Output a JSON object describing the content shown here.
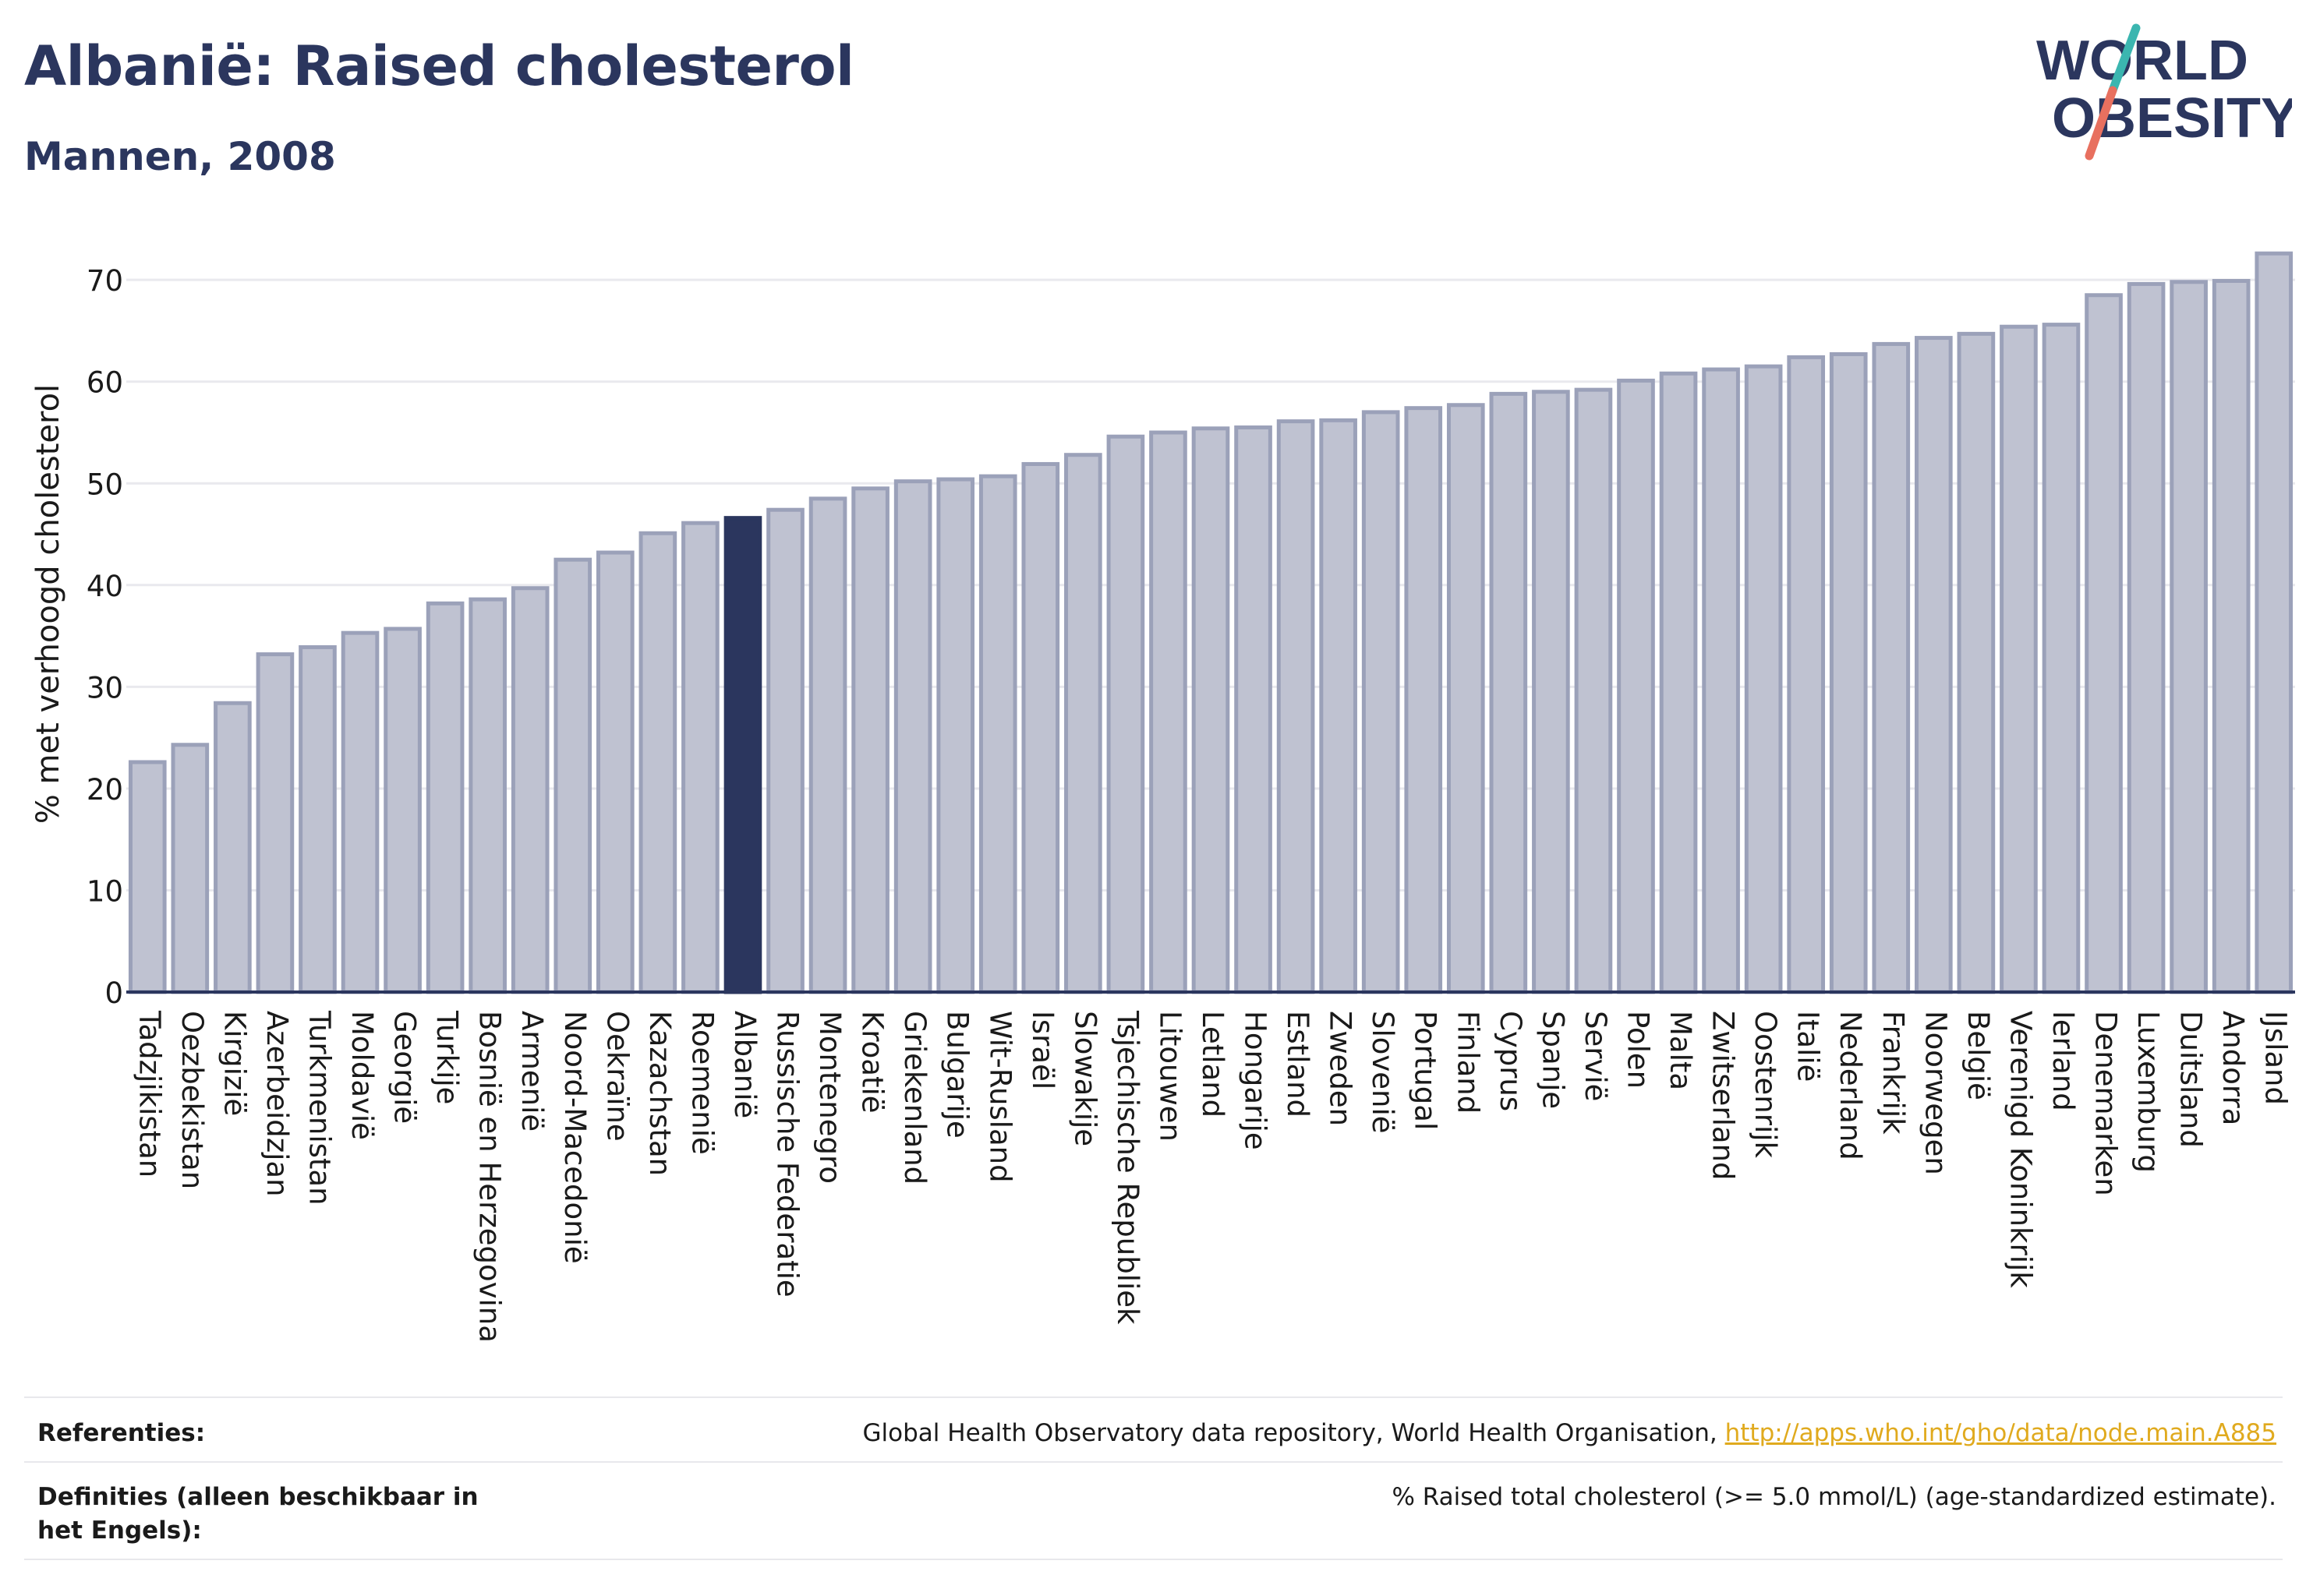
{
  "header": {
    "title": "Albanië: Raised cholesterol",
    "subtitle": "Mannen, 2008"
  },
  "logo": {
    "line1": "WORLD",
    "line2": "OBESITY"
  },
  "colors": {
    "bar": "#bfc2d1",
    "bar_stroke": "#9ba1b9",
    "highlight": "#2b365e",
    "grid": "#e9e9ee",
    "text": "#2b365e",
    "link": "#e0aa1e"
  },
  "chart_data": {
    "type": "bar",
    "ylabel": "% met verhoogd cholesterol",
    "ylim": [
      0,
      73
    ],
    "yticks": [
      0,
      10,
      20,
      30,
      40,
      50,
      60,
      70
    ],
    "highlight": "Albanië",
    "categories": [
      "Tadzjikistan",
      "Oezbekistan",
      "Kirgizië",
      "Azerbeidzjan",
      "Turkmenistan",
      "Moldavië",
      "Georgië",
      "Turkije",
      "Bosnië en Herzegovina",
      "Armenië",
      "Noord-Macedonië",
      "Oekraïne",
      "Kazachstan",
      "Roemenië",
      "Albanië",
      "Russische Federatie",
      "Montenegro",
      "Kroatië",
      "Griekenland",
      "Bulgarije",
      "Wit-Rusland",
      "Israël",
      "Slowakije",
      "Tsjechische Republiek",
      "Litouwen",
      "Letland",
      "Hongarije",
      "Estland",
      "Zweden",
      "Slovenië",
      "Portugal",
      "Finland",
      "Cyprus",
      "Spanje",
      "Servië",
      "Polen",
      "Malta",
      "Zwitserland",
      "Oostenrijk",
      "Italië",
      "Nederland",
      "Frankrijk",
      "Noorwegen",
      "België",
      "Verenigd Koninkrijk",
      "Ierland",
      "Denemarken",
      "Luxemburg",
      "Duitsland",
      "Andorra",
      "IJsland"
    ],
    "values": [
      22.6,
      24.3,
      28.4,
      33.2,
      33.9,
      35.3,
      35.7,
      38.2,
      38.6,
      39.7,
      42.5,
      43.2,
      45.1,
      46.1,
      46.6,
      47.4,
      48.5,
      49.5,
      50.2,
      50.4,
      50.7,
      51.9,
      52.8,
      54.6,
      55.0,
      55.4,
      55.5,
      56.1,
      56.2,
      57.0,
      57.4,
      57.7,
      58.8,
      59.0,
      59.2,
      60.1,
      60.8,
      61.2,
      61.5,
      62.4,
      62.7,
      63.7,
      64.3,
      64.7,
      65.4,
      65.6,
      68.5,
      69.6,
      69.8,
      69.9,
      72.6
    ]
  },
  "footer": {
    "references_label": "Referenties:",
    "references_text": "Global Health Observatory data repository, World Health Organisation,",
    "references_link": "http://apps.who.int/gho/data/node.main.A885",
    "definitions_label": "Definities (alleen beschikbaar in het Engels):",
    "definitions_text": "% Raised total cholesterol (>= 5.0 mmol/L) (age-standardized estimate)."
  }
}
